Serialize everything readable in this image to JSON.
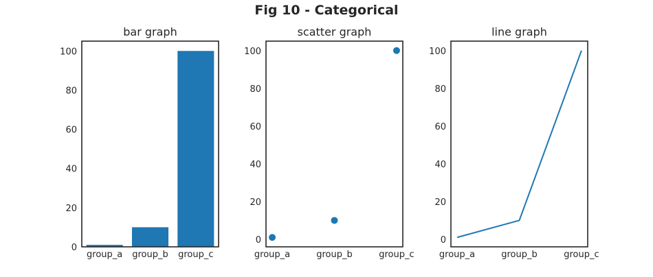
{
  "figure": {
    "title": "Fig 10 - Categorical"
  },
  "chart_data": [
    {
      "type": "bar",
      "title": "bar graph",
      "categories": [
        "group_a",
        "group_b",
        "group_c"
      ],
      "values": [
        1,
        10,
        100
      ],
      "xlabel": "",
      "ylabel": "",
      "ylim": [
        0,
        105
      ],
      "yticks": [
        "0",
        "20",
        "40",
        "60",
        "80",
        "100"
      ],
      "color": "#1f77b4",
      "grid": false
    },
    {
      "type": "scatter",
      "title": "scatter graph",
      "categories": [
        "group_a",
        "group_b",
        "group_c"
      ],
      "values": [
        1,
        10,
        100
      ],
      "xlabel": "",
      "ylabel": "",
      "ylim": [
        -4,
        105
      ],
      "yticks": [
        "0",
        "20",
        "40",
        "60",
        "80",
        "100"
      ],
      "color": "#1f77b4",
      "grid": false
    },
    {
      "type": "line",
      "title": "line graph",
      "categories": [
        "group_a",
        "group_b",
        "group_c"
      ],
      "values": [
        1,
        10,
        100
      ],
      "xlabel": "",
      "ylabel": "",
      "ylim": [
        -4,
        105
      ],
      "yticks": [
        "0",
        "20",
        "40",
        "60",
        "80",
        "100"
      ],
      "color": "#1f77b4",
      "grid": false
    }
  ]
}
